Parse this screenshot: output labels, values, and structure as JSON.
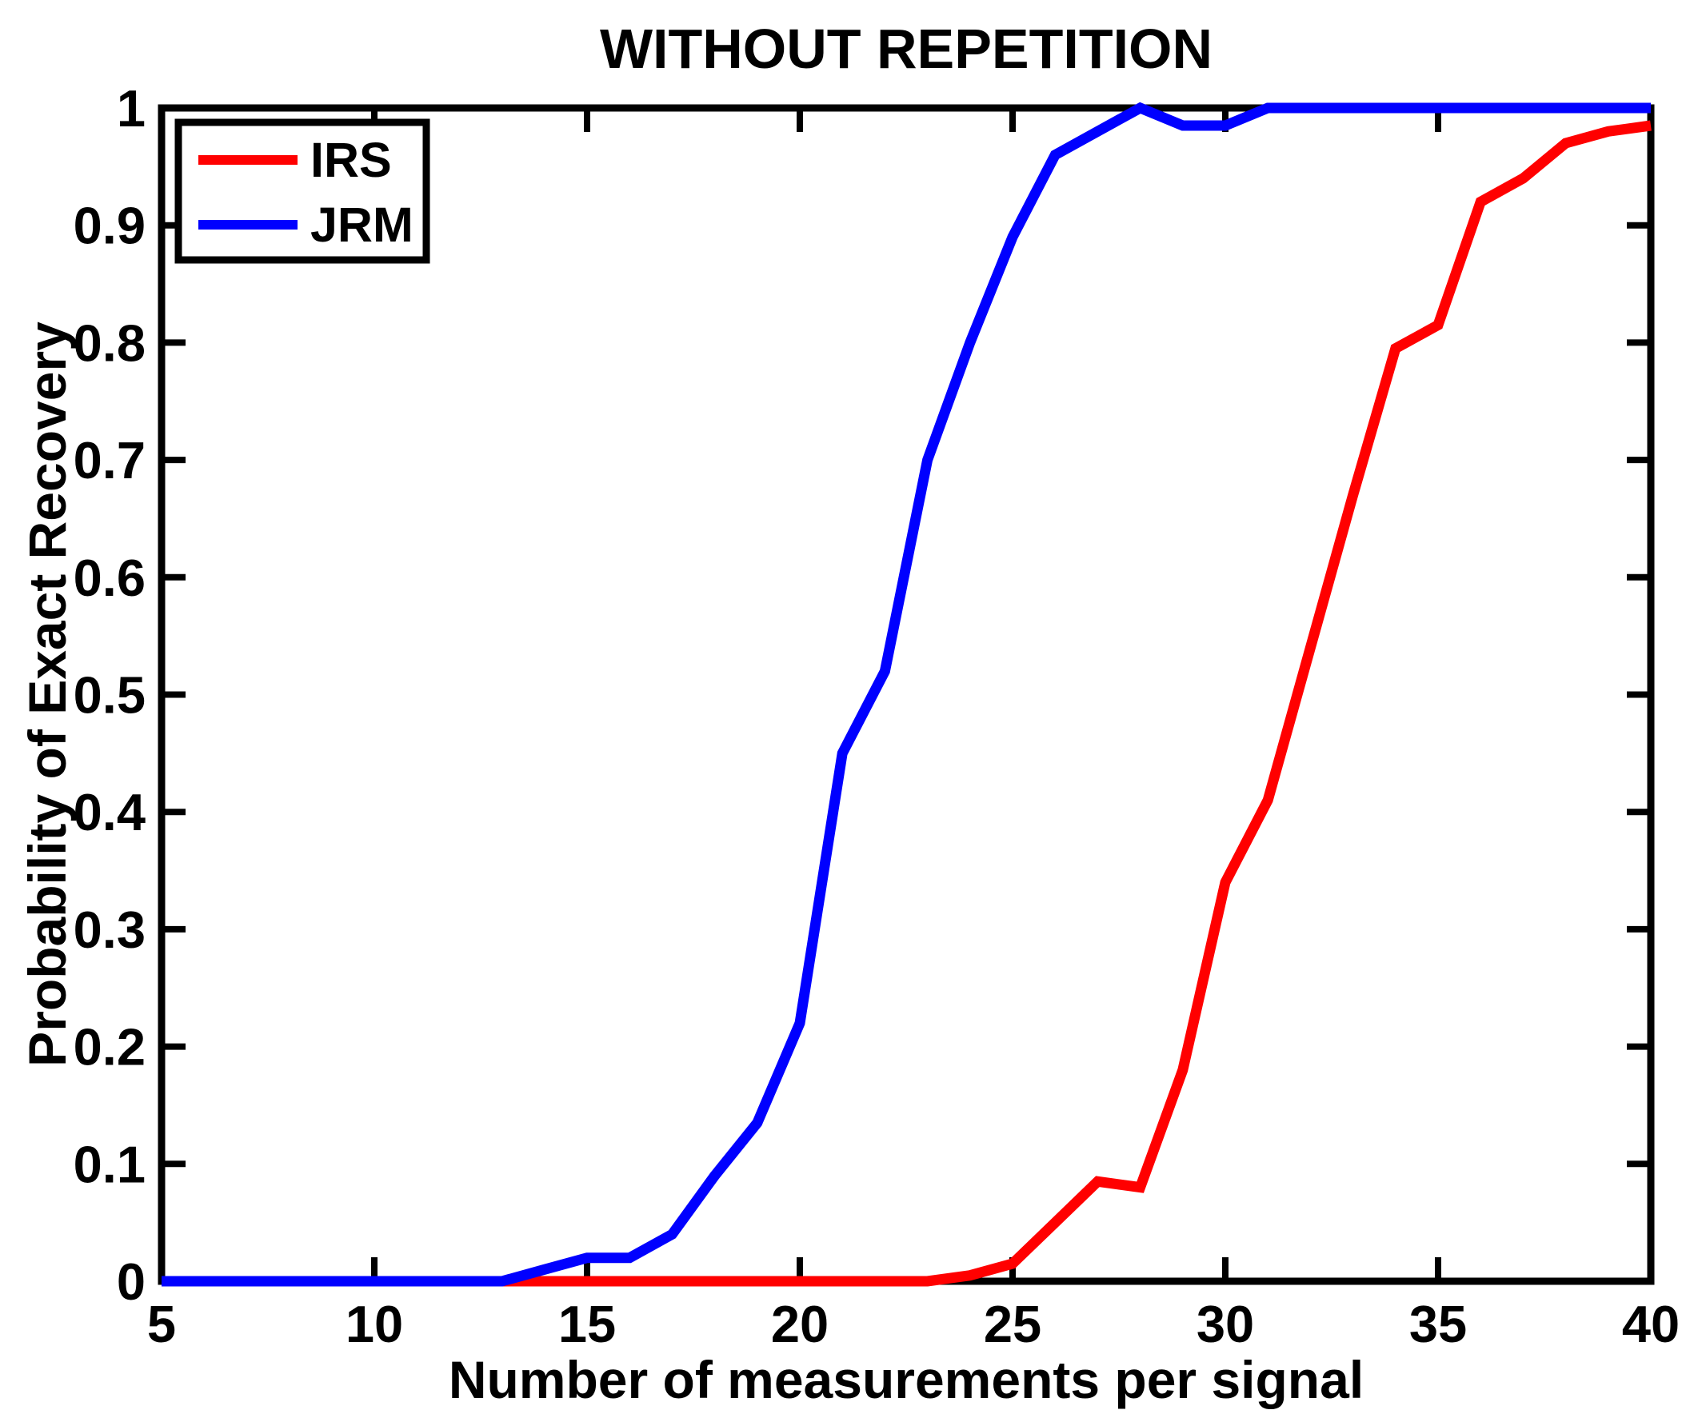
{
  "title": "WITHOUT REPETITION",
  "axes": {
    "xlabel": "Number of measurements per signal",
    "ylabel": "Probability of Exact Recovery",
    "x_tick_labels": [
      "5",
      "10",
      "15",
      "20",
      "25",
      "30",
      "35",
      "40"
    ],
    "y_tick_labels": [
      "0",
      "0.1",
      "0.2",
      "0.3",
      "0.4",
      "0.5",
      "0.6",
      "0.7",
      "0.8",
      "0.9",
      "1"
    ]
  },
  "legend": {
    "position": "top-left",
    "entries": [
      {
        "label": "IRS",
        "color": "#ff0000"
      },
      {
        "label": "JRM",
        "color": "#0000ff"
      }
    ]
  },
  "colors": {
    "irs_line": "#ff0000",
    "jrm_line": "#0000ff",
    "axis": "#000000",
    "background": "#ffffff"
  },
  "chart_data": {
    "type": "line",
    "title": "WITHOUT REPETITION",
    "xlabel": "Number of measurements per signal",
    "ylabel": "Probability of Exact Recovery",
    "xlim": [
      5,
      40
    ],
    "ylim": [
      0,
      1
    ],
    "x_ticks": [
      5,
      10,
      15,
      20,
      25,
      30,
      35,
      40
    ],
    "y_ticks": [
      0,
      0.1,
      0.2,
      0.3,
      0.4,
      0.5,
      0.6,
      0.7,
      0.8,
      0.9,
      1
    ],
    "grid": false,
    "legend_position": "top-left",
    "x": [
      5,
      6,
      7,
      8,
      9,
      10,
      11,
      12,
      13,
      14,
      15,
      16,
      17,
      18,
      19,
      20,
      21,
      22,
      23,
      24,
      25,
      26,
      27,
      28,
      29,
      30,
      31,
      32,
      33,
      34,
      35,
      36,
      37,
      38,
      39,
      40
    ],
    "series": [
      {
        "name": "IRS",
        "color": "#ff0000",
        "values": [
          0,
          0,
          0,
          0,
          0,
          0,
          0,
          0,
          0,
          0,
          0,
          0,
          0,
          0,
          0,
          0,
          0,
          0,
          0,
          0.005,
          0.015,
          0.05,
          0.085,
          0.08,
          0.18,
          0.34,
          0.41,
          0.54,
          0.67,
          0.795,
          0.815,
          0.92,
          0.94,
          0.97,
          0.98,
          0.985
        ]
      },
      {
        "name": "JRM",
        "color": "#0000ff",
        "values": [
          0,
          0,
          0,
          0,
          0,
          0,
          0,
          0,
          0,
          0.01,
          0.02,
          0.02,
          0.04,
          0.09,
          0.135,
          0.22,
          0.45,
          0.52,
          0.7,
          0.8,
          0.89,
          0.96,
          0.98,
          1,
          0.985,
          0.985,
          1,
          1,
          1,
          1,
          1,
          1,
          1,
          1,
          1,
          1
        ]
      }
    ]
  }
}
